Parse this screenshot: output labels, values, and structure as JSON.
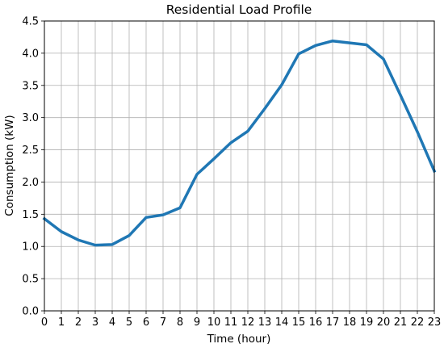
{
  "chart_data": {
    "type": "line",
    "title": "Residential Load Profile",
    "xlabel": "Time (hour)",
    "ylabel": "Consumption (kW)",
    "xlim": [
      0,
      23
    ],
    "ylim": [
      0,
      4.5
    ],
    "grid": true,
    "x_ticks": [
      0,
      1,
      2,
      3,
      4,
      5,
      6,
      7,
      8,
      9,
      10,
      11,
      12,
      13,
      14,
      15,
      16,
      17,
      18,
      19,
      20,
      21,
      22,
      23
    ],
    "y_ticks": [
      "0.0",
      "0.5",
      "1.0",
      "1.5",
      "2.0",
      "2.5",
      "3.0",
      "3.5",
      "4.0",
      "4.5"
    ],
    "series": [
      {
        "color": "#1f77b4",
        "x": [
          0,
          1,
          2,
          3,
          4,
          5,
          6,
          7,
          8,
          9,
          10,
          11,
          12,
          13,
          14,
          15,
          16,
          17,
          18,
          19,
          20,
          21,
          22,
          23
        ],
        "values": [
          1.43,
          1.23,
          1.1,
          1.02,
          1.03,
          1.17,
          1.45,
          1.49,
          1.6,
          2.12,
          2.36,
          2.61,
          2.79,
          3.14,
          3.51,
          3.99,
          4.12,
          4.19,
          4.16,
          4.13,
          3.91,
          3.35,
          2.78,
          2.17
        ]
      }
    ]
  }
}
